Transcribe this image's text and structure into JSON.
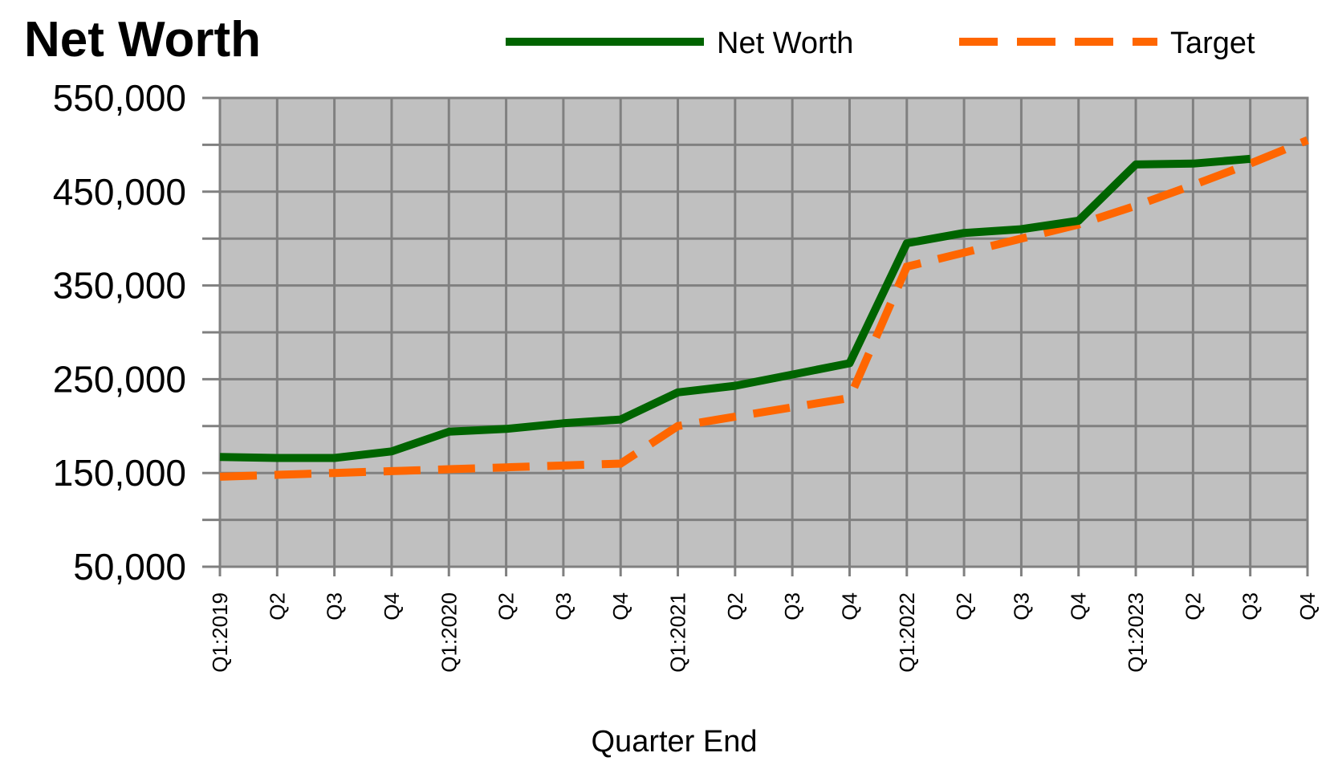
{
  "chart_data": {
    "type": "line",
    "title": "Net Worth",
    "xlabel": "Quarter End",
    "ylabel": "",
    "ylim": [
      50000,
      550000
    ],
    "y_tick_labels": [
      "550,000",
      "450,000",
      "350,000",
      "250,000",
      "150,000",
      "50,000"
    ],
    "y_tick_values": [
      550000,
      450000,
      350000,
      250000,
      150000,
      50000
    ],
    "y_minor_step": 50000,
    "grid": true,
    "legend_position": "top",
    "categories": [
      "Q1:2019",
      "Q2",
      "Q3",
      "Q4",
      "Q1:2020",
      "Q2",
      "Q3",
      "Q4",
      "Q1:2021",
      "Q2",
      "Q3",
      "Q4",
      "Q1:2022",
      "Q2",
      "Q3",
      "Q4",
      "Q1:2023",
      "Q2",
      "Q3",
      "Q4"
    ],
    "series": [
      {
        "name": "Net Worth",
        "color": "#006400",
        "style": "solid",
        "values": [
          167000,
          166000,
          166000,
          173000,
          194000,
          197000,
          203000,
          207000,
          236000,
          243000,
          255000,
          267000,
          395000,
          406000,
          410000,
          419000,
          479000,
          480000,
          485000,
          null
        ]
      },
      {
        "name": "Target",
        "color": "#FF6600",
        "style": "dashed",
        "values": [
          146000,
          148000,
          150000,
          152000,
          154000,
          156000,
          158000,
          160000,
          200000,
          210000,
          220000,
          230000,
          370000,
          385000,
          400000,
          415000,
          435000,
          457000,
          480000,
          505000
        ]
      }
    ],
    "colors": {
      "plot_background": "#C0C0C0",
      "gridline": "#808080"
    }
  }
}
